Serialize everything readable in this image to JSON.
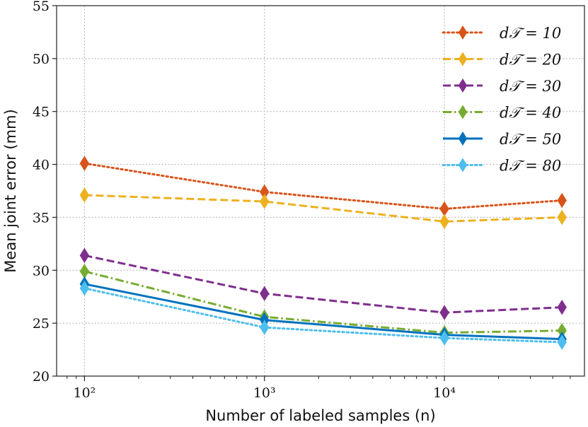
{
  "chart_data": {
    "type": "line",
    "title": "",
    "xlabel": "Number of labeled samples (n)",
    "ylabel": "Mean joint error (mm)",
    "x_scale": "log",
    "xlim": [
      70,
      60000
    ],
    "ylim": [
      20,
      55
    ],
    "x": [
      100,
      1000,
      10000,
      45000
    ],
    "x_ticks": [
      {
        "value": 100,
        "label": "10²"
      },
      {
        "value": 1000,
        "label": "10³"
      },
      {
        "value": 10000,
        "label": "10⁴"
      }
    ],
    "y_ticks": [
      20,
      25,
      30,
      35,
      40,
      45,
      50,
      55
    ],
    "grid": true,
    "legend_position": "top-right",
    "series": [
      {
        "name": "d𝒯 = 10",
        "values": [
          40.1,
          37.4,
          35.8,
          36.6
        ],
        "color": "#d9541a",
        "dash": "dotted"
      },
      {
        "name": "d𝒯 = 20",
        "values": [
          37.1,
          36.5,
          34.6,
          35.0
        ],
        "color": "#edb120",
        "dash": "dashed"
      },
      {
        "name": "d𝒯 = 30",
        "values": [
          31.4,
          27.8,
          26.0,
          26.5
        ],
        "color": "#7e2f8e",
        "dash": "dashed"
      },
      {
        "name": "d𝒯 = 40",
        "values": [
          29.9,
          25.6,
          24.1,
          24.3
        ],
        "color": "#77ac30",
        "dash": "dashdot"
      },
      {
        "name": "d𝒯 = 50",
        "values": [
          28.7,
          25.3,
          23.9,
          23.5
        ],
        "color": "#0072bd",
        "dash": "solid"
      },
      {
        "name": "d𝒯 = 80",
        "values": [
          28.3,
          24.6,
          23.6,
          23.2
        ],
        "color": "#4dbeee",
        "dash": "dotted"
      }
    ]
  }
}
